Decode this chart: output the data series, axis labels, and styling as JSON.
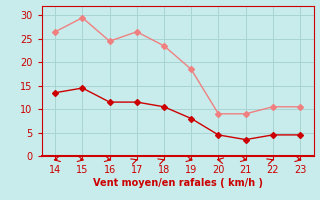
{
  "x": [
    14,
    15,
    16,
    17,
    18,
    19,
    20,
    21,
    22,
    23
  ],
  "rafales": [
    26.5,
    29.5,
    24.5,
    26.5,
    23.5,
    18.5,
    9.0,
    9.0,
    10.5,
    10.5
  ],
  "vent_moyen": [
    13.5,
    14.5,
    11.5,
    11.5,
    10.5,
    8.0,
    4.5,
    3.5,
    4.5,
    4.5
  ],
  "color_rafales": "#f08080",
  "color_vent": "#cc0000",
  "bg_color": "#c8ecec",
  "grid_color": "#a8d4d4",
  "xlabel": "Vent moyen/en rafales ( km/h )",
  "xlabel_color": "#cc0000",
  "xlabel_fontsize": 7,
  "yticks": [
    0,
    5,
    10,
    15,
    20,
    25,
    30
  ],
  "xticks": [
    14,
    15,
    16,
    17,
    18,
    19,
    20,
    21,
    22,
    23
  ],
  "ylim": [
    0,
    32
  ],
  "xlim": [
    13.5,
    23.5
  ],
  "tick_fontsize": 7,
  "tick_color": "#cc0000",
  "line_width": 1.0,
  "marker_size": 3,
  "spine_color": "#cc0000"
}
